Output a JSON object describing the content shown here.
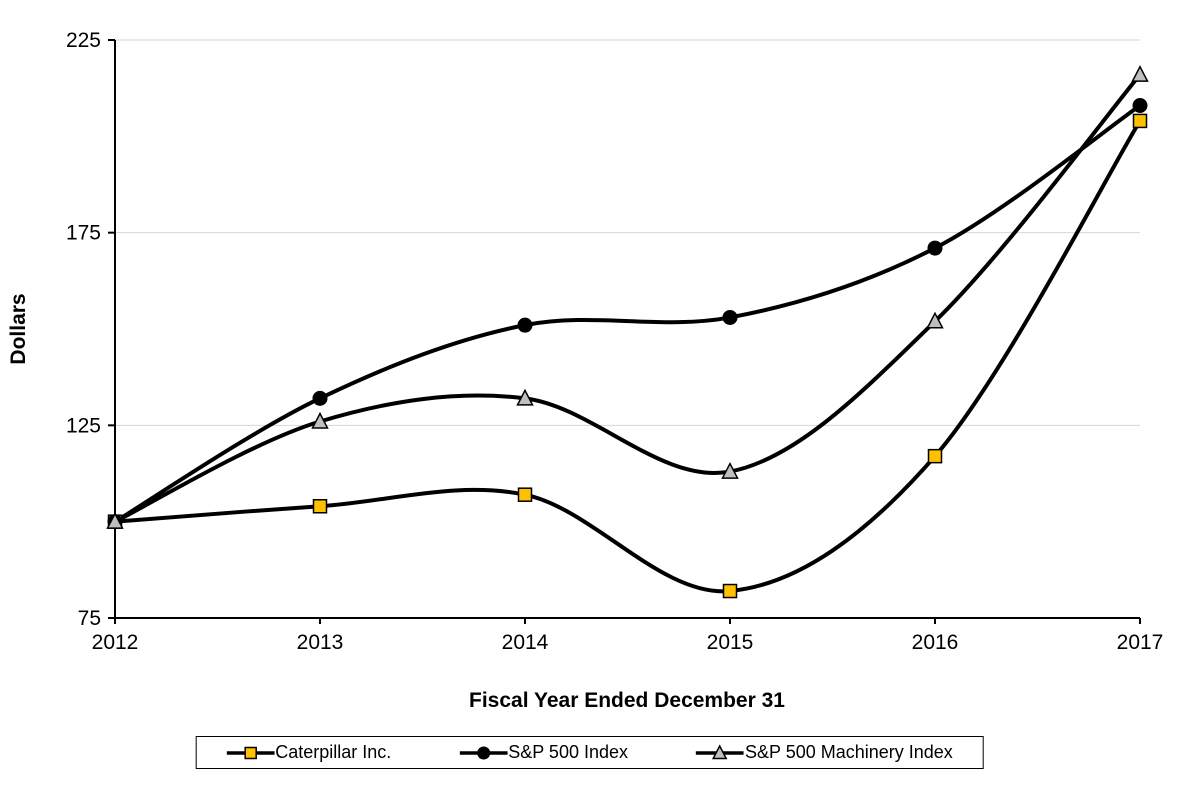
{
  "chart_data": {
    "type": "line",
    "title": "",
    "xlabel": "Fiscal Year Ended December 31",
    "ylabel": "Dollars",
    "x_labels": [
      "2012",
      "2013",
      "2014",
      "2015",
      "2016",
      "2017"
    ],
    "ylim": [
      75,
      225
    ],
    "yticks": [
      75,
      125,
      175,
      225
    ],
    "grid": "horizontal",
    "legend_position": "bottom",
    "series": [
      {
        "name": "Caterpillar Inc.",
        "marker": "square",
        "marker_fill": "#FFC000",
        "line_color": "#000000",
        "values": [
          100,
          104,
          107,
          82,
          117,
          204
        ]
      },
      {
        "name": "S&P 500 Index",
        "marker": "circle",
        "marker_fill": "#000000",
        "line_color": "#000000",
        "values": [
          100,
          132,
          151,
          153,
          171,
          208
        ]
      },
      {
        "name": "S&P 500 Machinery Index",
        "marker": "triangle",
        "marker_fill": "#BFBFBF",
        "line_color": "#000000",
        "values": [
          100,
          126,
          132,
          113,
          152,
          216
        ]
      }
    ]
  },
  "colors": {
    "background": "#FFFFFF",
    "axis": "#000000",
    "gridline": "#D6D6D6",
    "text": "#000000"
  }
}
